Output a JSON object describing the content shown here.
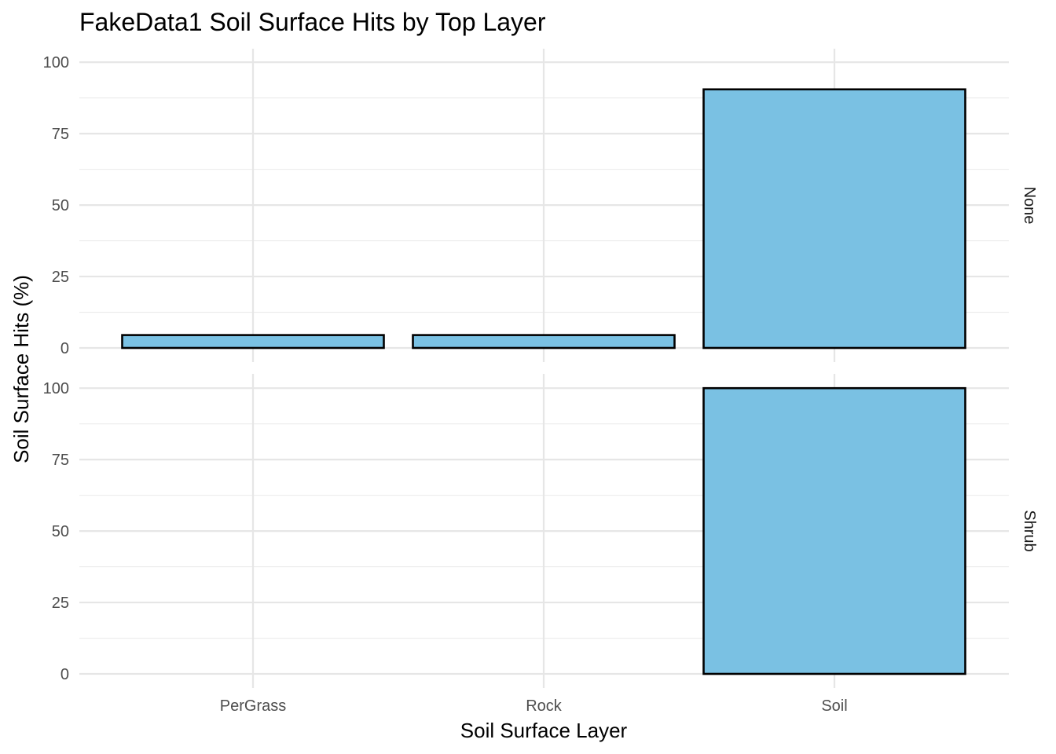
{
  "chart_data": {
    "type": "bar",
    "title": "FakeData1 Soil Surface Hits by Top Layer",
    "xlabel": "Soil Surface Layer",
    "ylabel": "Soil Surface Hits (%)",
    "categories": [
      "PerGrass",
      "Rock",
      "Soil"
    ],
    "ylim": [
      0,
      100
    ],
    "yticks": [
      "0",
      "25",
      "50",
      "75",
      "100"
    ],
    "grid": true,
    "bar_color": "#7AC1E3",
    "bar_outline": "#000000",
    "facets": [
      {
        "label": "None",
        "values": [
          4.5,
          4.5,
          90.5
        ]
      },
      {
        "label": "Shrub",
        "values": [
          null,
          null,
          100
        ]
      }
    ]
  }
}
